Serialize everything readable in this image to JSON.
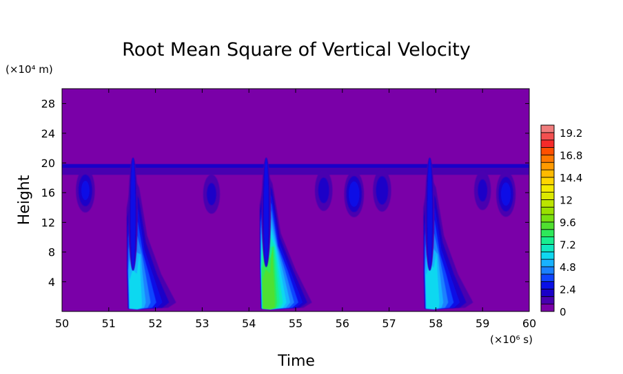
{
  "chart_data": {
    "type": "heatmap",
    "title": "Root Mean Square of Vertical Velocity",
    "xlabel": "Time",
    "ylabel": "Height",
    "x_unit": "(×10⁶ s)",
    "y_unit": "(×10⁴ m)",
    "xlim": [
      50,
      60
    ],
    "ylim": [
      0,
      30
    ],
    "x_ticks": [
      "50",
      "51",
      "52",
      "53",
      "54",
      "55",
      "56",
      "57",
      "58",
      "59",
      "60"
    ],
    "y_ticks": [
      "4",
      "8",
      "12",
      "16",
      "20",
      "24",
      "28"
    ],
    "tropopause_height": 19.7,
    "colorbar": {
      "min": 0,
      "max": 20,
      "step": 0.8,
      "ticks": [
        "0",
        "2.4",
        "4.8",
        "7.2",
        "9.6",
        "12",
        "14.4",
        "16.8",
        "19.2"
      ],
      "background_color": "#7A00A8"
    },
    "features": [
      {
        "kind": "deep-convection",
        "time": 51.55,
        "peak_height": 3.5,
        "peak_value": 5.8
      },
      {
        "kind": "deep-convection",
        "time": 54.4,
        "peak_height": 4.0,
        "peak_value": 9.0
      },
      {
        "kind": "deep-convection",
        "time": 57.9,
        "peak_height": 3.5,
        "peak_value": 6.0
      },
      {
        "kind": "upper-plume",
        "time": 50.5,
        "height": 16.0,
        "value": 2.5
      },
      {
        "kind": "upper-plume",
        "time": 53.2,
        "height": 15.5,
        "value": 1.8
      },
      {
        "kind": "upper-plume",
        "time": 55.6,
        "height": 16.0,
        "value": 2.0
      },
      {
        "kind": "upper-plume",
        "time": 56.25,
        "height": 15.5,
        "value": 3.0
      },
      {
        "kind": "upper-plume",
        "time": 56.85,
        "height": 16.0,
        "value": 2.2
      },
      {
        "kind": "upper-plume",
        "time": 59.0,
        "height": 16.0,
        "value": 1.8
      },
      {
        "kind": "upper-plume",
        "time": 59.5,
        "height": 15.5,
        "value": 2.8
      }
    ]
  }
}
